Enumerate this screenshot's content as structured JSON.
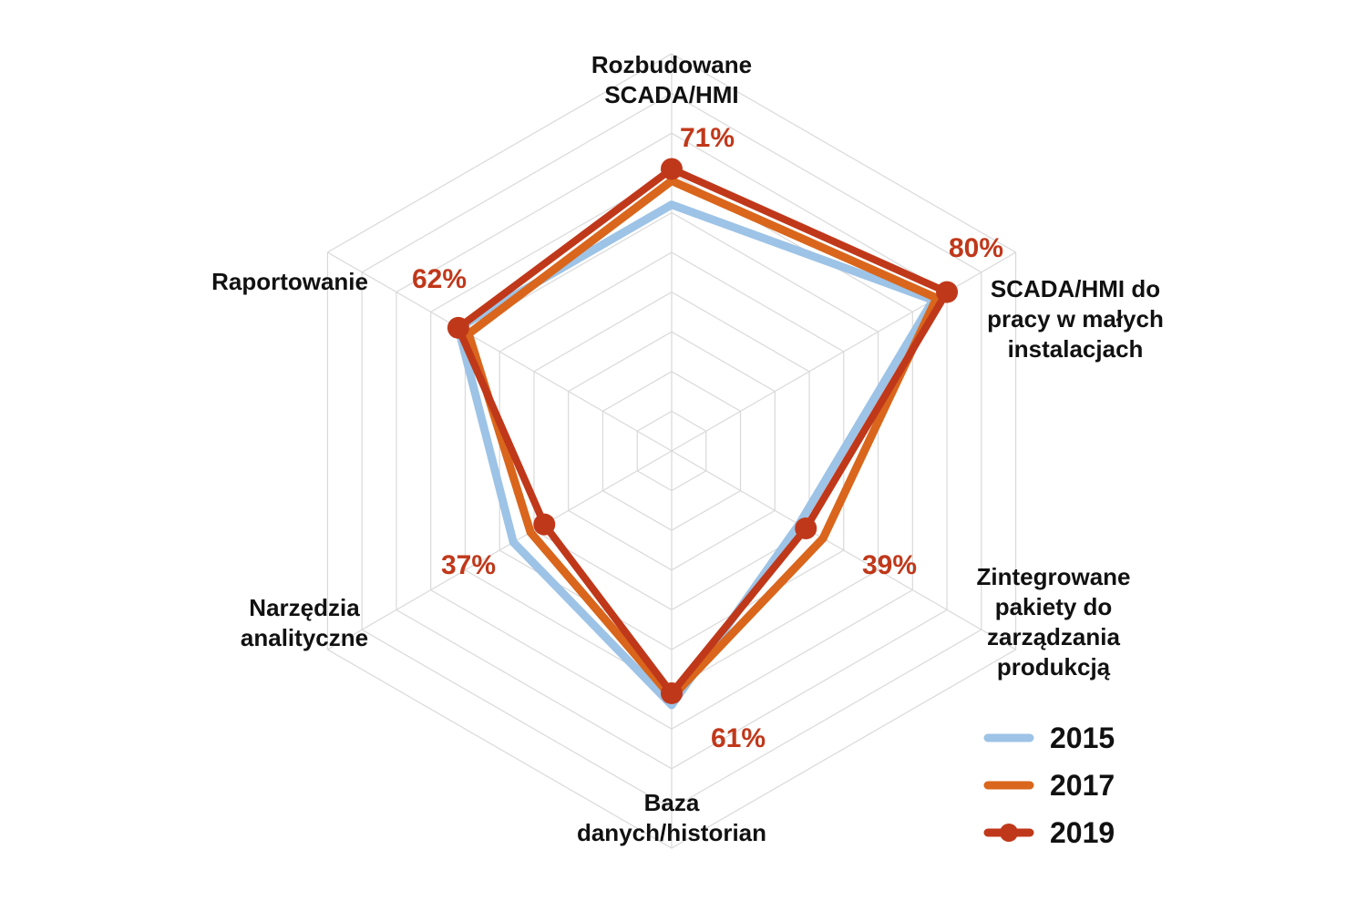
{
  "chart_data": {
    "type": "radar",
    "categories": [
      "Rozbudowane SCADA/HMI",
      "SCADA/HMI do pracy w małych instalacjach",
      "Zintegrowane pakiety do zarządzania produkcją",
      "Baza danych/historian",
      "Narzędzia analityczne",
      "Raportowanie"
    ],
    "series": [
      {
        "name": "2015",
        "color": "#9dc3e6",
        "values": [
          62,
          76,
          37,
          64,
          46,
          62
        ]
      },
      {
        "name": "2017",
        "color": "#d9661c",
        "values": [
          68,
          77,
          44,
          62,
          41,
          59
        ]
      },
      {
        "name": "2019",
        "color": "#c0381a",
        "values": [
          71,
          80,
          39,
          61,
          37,
          62
        ]
      }
    ],
    "data_labels": [
      "71%",
      "80%",
      "39%",
      "61%",
      "37%",
      "62%"
    ],
    "data_label_color": "#c0381a",
    "rmax": 100,
    "rings": 10,
    "grid": true,
    "legend": "bottom-right"
  }
}
